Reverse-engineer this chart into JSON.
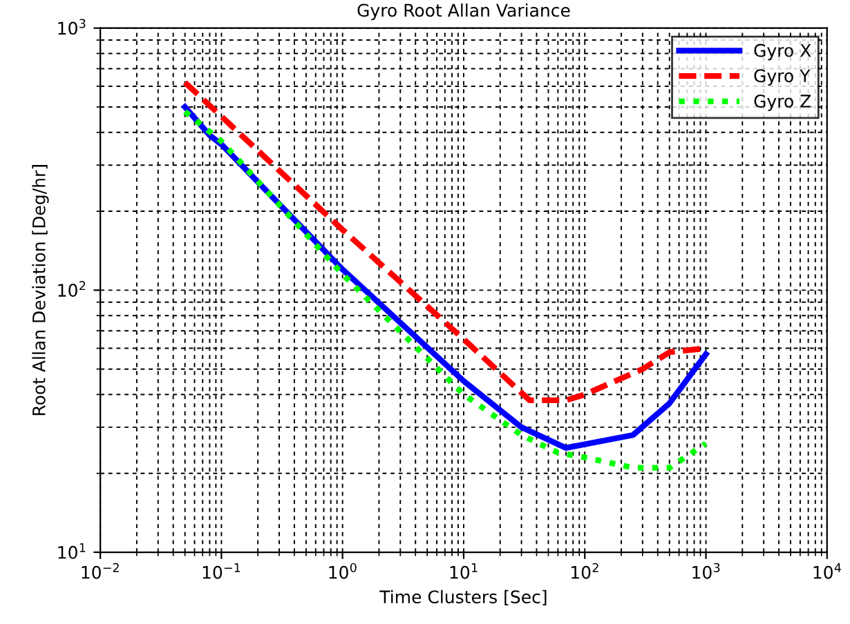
{
  "chart_data": {
    "type": "line",
    "title": "Gyro Root Allan Variance",
    "xlabel": "Time Clusters [Sec]",
    "ylabel": "Root Allan Deviation [Deg/hr]",
    "log": "xy",
    "grid": true,
    "legend": "top right",
    "xlim": [
      0.01,
      10000
    ],
    "ylim": [
      10,
      1000
    ],
    "xticks": [
      {
        "value": 0.01,
        "label": "10$^{−2}$"
      },
      {
        "value": 0.1,
        "label": "10$^{−1}$"
      },
      {
        "value": 1,
        "label": "10$^{0}$"
      },
      {
        "value": 10,
        "label": "10$^{1}$"
      },
      {
        "value": 100,
        "label": "10$^{2}$"
      },
      {
        "value": 1000,
        "label": "10$^{3}$"
      },
      {
        "value": 10000,
        "label": "10$^{4}$"
      }
    ],
    "yticks": [
      {
        "value": 10,
        "label": "10$^{1}$"
      },
      {
        "value": 100,
        "label": "10$^{2}$"
      },
      {
        "value": 1000,
        "label": "10$^{3}$"
      }
    ],
    "series": [
      {
        "name": "Gyro X",
        "color": "#0000ff",
        "line_style": "solid",
        "x": [
          0.05,
          0.08,
          0.1,
          1,
          10,
          30,
          70,
          250,
          500,
          1000
        ],
        "values": [
          500,
          390,
          360,
          120,
          45,
          30,
          25,
          28,
          37,
          57
        ]
      },
      {
        "name": "Gyro Y",
        "color": "#ff0000",
        "line_style": "dashed",
        "x": [
          0.05,
          0.1,
          1,
          10,
          35,
          70,
          100,
          300,
          500,
          1000
        ],
        "values": [
          620,
          460,
          170,
          65,
          38,
          38,
          40,
          50,
          58,
          60
        ]
      },
      {
        "name": "Gyro Z",
        "color": "#00ff00",
        "line_style": "dotted",
        "x": [
          0.05,
          0.1,
          1,
          10,
          30,
          60,
          100,
          250,
          500,
          1000
        ],
        "values": [
          480,
          370,
          115,
          40,
          28,
          24,
          23,
          21,
          21,
          26
        ]
      }
    ]
  }
}
